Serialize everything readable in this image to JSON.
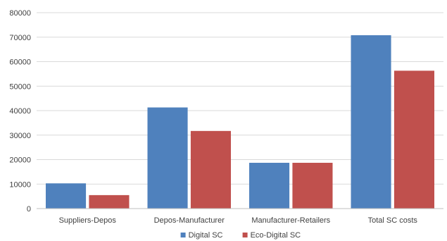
{
  "chart_data": {
    "type": "bar",
    "title": "",
    "xlabel": "",
    "ylabel": "",
    "categories": [
      "Suppliers-Depos",
      "Depos-Manufacturer",
      "Manufacturer-Retailers",
      "Total SC costs"
    ],
    "series": [
      {
        "name": "Digital SC",
        "color": "#4f81bd",
        "values": [
          10300,
          41300,
          18700,
          70800
        ]
      },
      {
        "name": "Eco-Digital SC",
        "color": "#c0504d",
        "values": [
          5500,
          31700,
          18700,
          56300
        ]
      }
    ],
    "ylim": [
      0,
      80000
    ],
    "yticks": [
      "0",
      "10000",
      "20000",
      "30000",
      "40000",
      "50000",
      "60000",
      "70000",
      "80000"
    ],
    "grid": true,
    "legend_position": "bottom-center"
  }
}
